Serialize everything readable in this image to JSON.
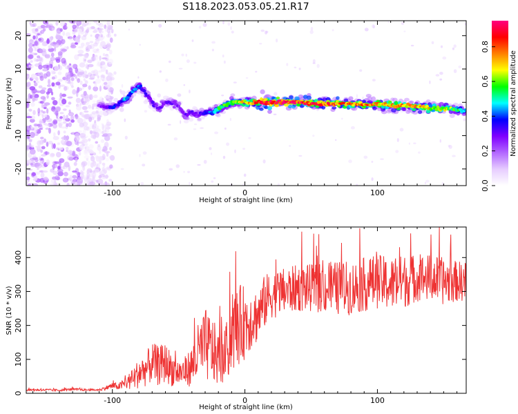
{
  "figure_title": "S118.2023.053.05.21.R17",
  "chart_data": [
    {
      "type": "heatmap",
      "title": "S118.2023.053.05.21.R17",
      "xlabel": "Height of straight line (km)",
      "ylabel": "Frequency (Hz)",
      "xlim": [
        -165,
        167
      ],
      "ylim": [
        -25,
        24.5
      ],
      "xticks": [
        -100,
        0,
        100
      ],
      "yticks": [
        -20,
        -10,
        0,
        10,
        20
      ],
      "grid": false,
      "colorbar": {
        "label": "Normalized spectral amplitude",
        "range": [
          0.0,
          0.95
        ],
        "ticks": [
          0.0,
          0.2,
          0.4,
          0.6,
          0.8
        ],
        "colormap": [
          "#ffffff",
          "#e6ccff",
          "#b266ff",
          "#7f00ff",
          "#0000ff",
          "#00ffff",
          "#00ff00",
          "#ffff00",
          "#ff8000",
          "#ff0000",
          "#ff0080"
        ]
      },
      "ridge": {
        "x": [
          -110,
          -100,
          -90,
          -80,
          -75,
          -70,
          -65,
          -60,
          -55,
          -50,
          -45,
          -40,
          -35,
          -30,
          -25,
          -20,
          -10,
          0,
          10,
          20,
          40,
          60,
          80,
          100,
          120,
          140,
          160,
          167
        ],
        "y": [
          -1,
          -1.5,
          1,
          5,
          3,
          0,
          -2,
          0,
          0,
          -1,
          -4,
          -3,
          -4,
          -3,
          -3,
          -2,
          0,
          0,
          0,
          0,
          0,
          -0.5,
          -0.5,
          -0.7,
          -1,
          -1.5,
          -2.2,
          -2.5
        ],
        "strength": [
          0.25,
          0.35,
          0.45,
          0.4,
          0.35,
          0.3,
          0.3,
          0.3,
          0.3,
          0.3,
          0.3,
          0.3,
          0.3,
          0.35,
          0.45,
          0.55,
          0.6,
          0.7,
          0.85,
          0.95,
          0.9,
          0.85,
          0.8,
          0.75,
          0.75,
          0.7,
          0.6,
          0.5
        ]
      },
      "noise_region": {
        "x": [
          -165,
          -110
        ],
        "level": 0.15
      }
    },
    {
      "type": "line",
      "xlabel": "Height of straight line (km)",
      "ylabel": "SNR (10 * v/v)",
      "xlim": [
        -165,
        167
      ],
      "ylim": [
        0,
        490
      ],
      "xticks": [
        -100,
        0,
        100
      ],
      "yticks": [
        0,
        100,
        200,
        300,
        400
      ],
      "grid": false,
      "line_color": "#ee3333",
      "series": [
        {
          "x": [
            -165,
            -150,
            -140,
            -130,
            -120,
            -110,
            -100,
            -95,
            -90,
            -85,
            -80,
            -75,
            -70,
            -65,
            -60,
            -55,
            -50,
            -45,
            -40,
            -35,
            -30,
            -25,
            -20,
            -15,
            -10,
            -5,
            0,
            5,
            10,
            15,
            20,
            30,
            40,
            50,
            60,
            70,
            80,
            90,
            100,
            110,
            120,
            130,
            140,
            150,
            160,
            167
          ],
          "values": [
            10,
            10,
            9,
            12,
            10,
            10,
            22,
            20,
            30,
            40,
            60,
            70,
            90,
            80,
            90,
            70,
            60,
            65,
            80,
            120,
            140,
            130,
            100,
            110,
            170,
            200,
            210,
            220,
            230,
            270,
            290,
            300,
            310,
            310,
            310,
            310,
            310,
            320,
            330,
            320,
            330,
            340,
            340,
            330,
            330,
            330
          ],
          "noise": [
            3,
            3,
            3,
            3,
            3,
            3,
            10,
            10,
            20,
            30,
            45,
            50,
            60,
            60,
            60,
            50,
            40,
            45,
            60,
            90,
            110,
            100,
            80,
            80,
            110,
            120,
            110,
            90,
            80,
            80,
            70,
            70,
            70,
            70,
            75,
            80,
            80,
            80,
            80,
            80,
            80,
            70,
            70,
            70,
            60,
            60
          ]
        }
      ]
    }
  ]
}
